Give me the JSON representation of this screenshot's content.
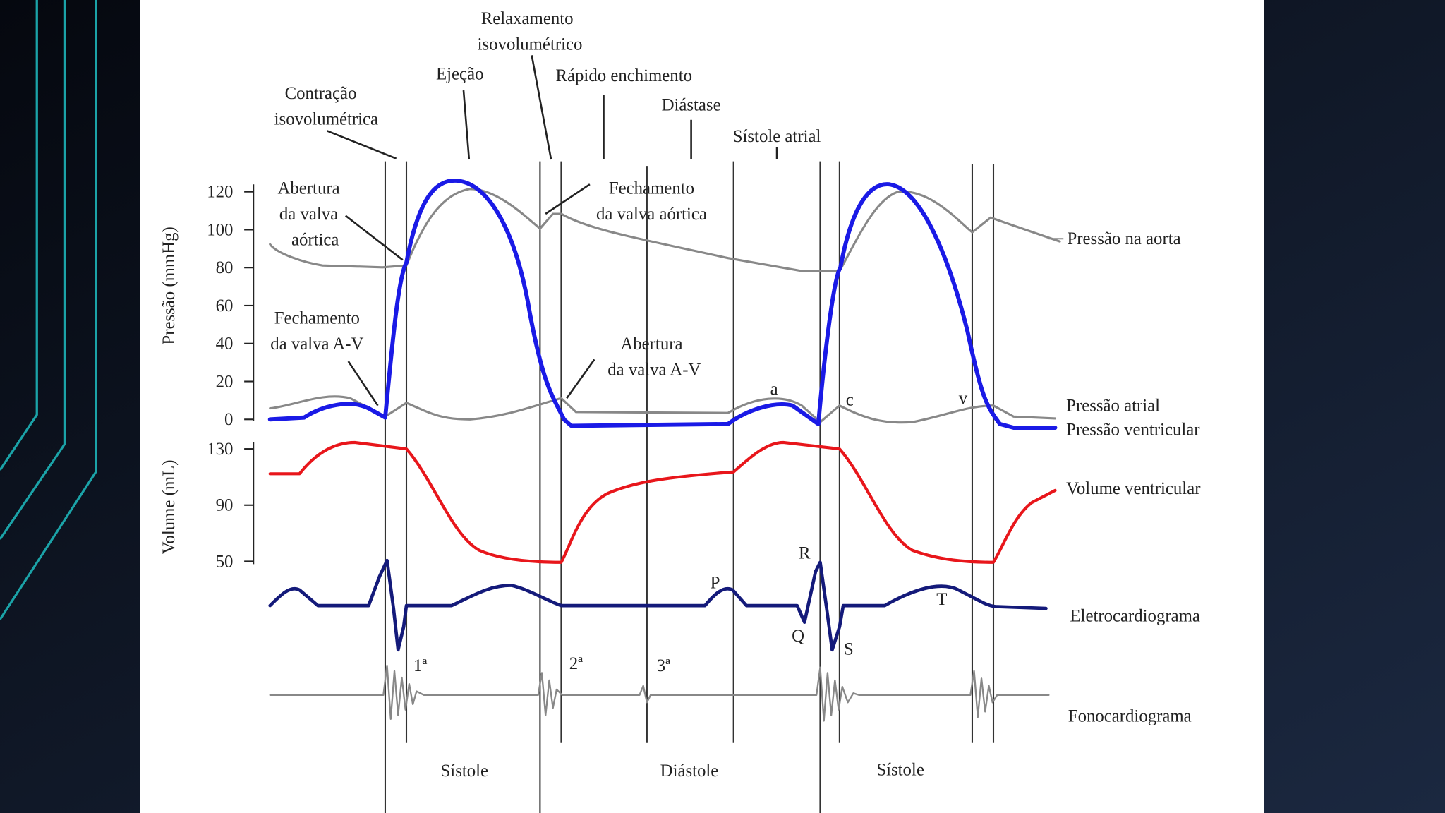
{
  "phase_labels": [
    {
      "lines": [
        "Relaxamento",
        "isovolumétrico"
      ]
    },
    {
      "lines": [
        "Ejeção"
      ]
    },
    {
      "lines": [
        "Rápido enchimento"
      ]
    },
    {
      "lines": [
        "Diástase"
      ]
    },
    {
      "lines": [
        "Sístole atrial"
      ]
    },
    {
      "lines": [
        "Contração",
        "isovolumétrica"
      ]
    }
  ],
  "event_labels": [
    {
      "lines": [
        "Abertura",
        "da valva",
        "aórtica"
      ]
    },
    {
      "lines": [
        "Fechamento",
        "da valva aórtica"
      ]
    },
    {
      "lines": [
        "Fechamento",
        "da valva A-V"
      ]
    },
    {
      "lines": [
        "Abertura",
        "da valva A-V"
      ]
    }
  ],
  "axes": {
    "pressure": {
      "title": "Pressão (mmHg)",
      "ticks": [
        120,
        100,
        80,
        60,
        40,
        20,
        0
      ]
    },
    "volume": {
      "title": "Volume (mL)",
      "ticks": [
        130,
        90,
        50
      ]
    }
  },
  "trace_labels": [
    "Pressão na aorta",
    "Pressão atrial",
    "Pressão ventricular",
    "Volume ventricular",
    "Eletrocardiograma",
    "Fonocardiograma"
  ],
  "wave_labels": [
    "a",
    "c",
    "v",
    "P",
    "R",
    "Q",
    "S",
    "T",
    "1ª",
    "2ª",
    "3ª"
  ],
  "period_labels": [
    "Sístole",
    "Diástole",
    "Sístole"
  ]
}
